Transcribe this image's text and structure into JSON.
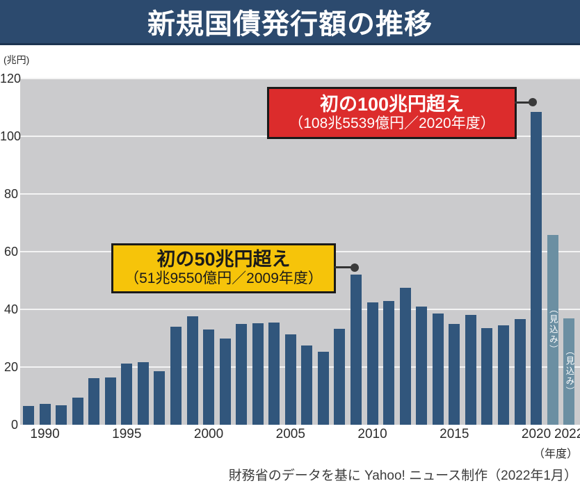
{
  "header": {
    "title": "新規国債発行額の推移"
  },
  "axes": {
    "y_unit": "(兆円)",
    "x_unit": "（年度）"
  },
  "chart_data": {
    "type": "bar",
    "title": "新規国債発行額の推移",
    "ylabel": "(兆円)",
    "xlabel": "（年度）",
    "ylim": [
      0,
      120
    ],
    "grid": true,
    "y_ticks": [
      0,
      20,
      40,
      60,
      80,
      100,
      120
    ],
    "x_ticks": [
      "1990",
      "1995",
      "2000",
      "2005",
      "2010",
      "2015",
      "2020",
      "2022"
    ],
    "categories": [
      "1989",
      "1990",
      "1991",
      "1992",
      "1993",
      "1994",
      "1995",
      "1996",
      "1997",
      "1998",
      "1999",
      "2000",
      "2001",
      "2002",
      "2003",
      "2004",
      "2005",
      "2006",
      "2007",
      "2008",
      "2009",
      "2010",
      "2011",
      "2012",
      "2013",
      "2014",
      "2015",
      "2016",
      "2017",
      "2018",
      "2019",
      "2020",
      "2021",
      "2022"
    ],
    "values": [
      6.6,
      7.3,
      6.7,
      9.5,
      16.2,
      16.5,
      21.2,
      21.7,
      18.5,
      34.0,
      37.5,
      33.0,
      30.0,
      35.0,
      35.3,
      35.5,
      31.3,
      27.5,
      25.4,
      33.2,
      51.96,
      42.3,
      42.8,
      47.5,
      40.9,
      38.5,
      34.9,
      38.0,
      33.6,
      34.4,
      36.6,
      108.55,
      65.7,
      36.9
    ],
    "forecast_years": [
      "2021",
      "2022"
    ],
    "forecast_label": "（見込み）",
    "colors": {
      "bar": "#31567c",
      "forecast_bar": "#6b8fa2",
      "plot_bg": "#cbcbcd",
      "gridline": "#f4f4f4",
      "header_bg": "#2c4a6e"
    }
  },
  "callouts": {
    "first_over_100": {
      "title": "初の100兆円超え",
      "detail": "（108兆5539億円／2020年度）",
      "bg": "#dc2c2c",
      "text_color": "#ffffff"
    },
    "first_over_50": {
      "title": "初の50兆円超え",
      "detail": "（51兆9550億円／2009年度）",
      "bg": "#f6c40a",
      "text_color": "#1a1a1a"
    }
  },
  "footer": {
    "source": "財務省のデータを基に Yahoo! ニュース制作（2022年1月）"
  }
}
